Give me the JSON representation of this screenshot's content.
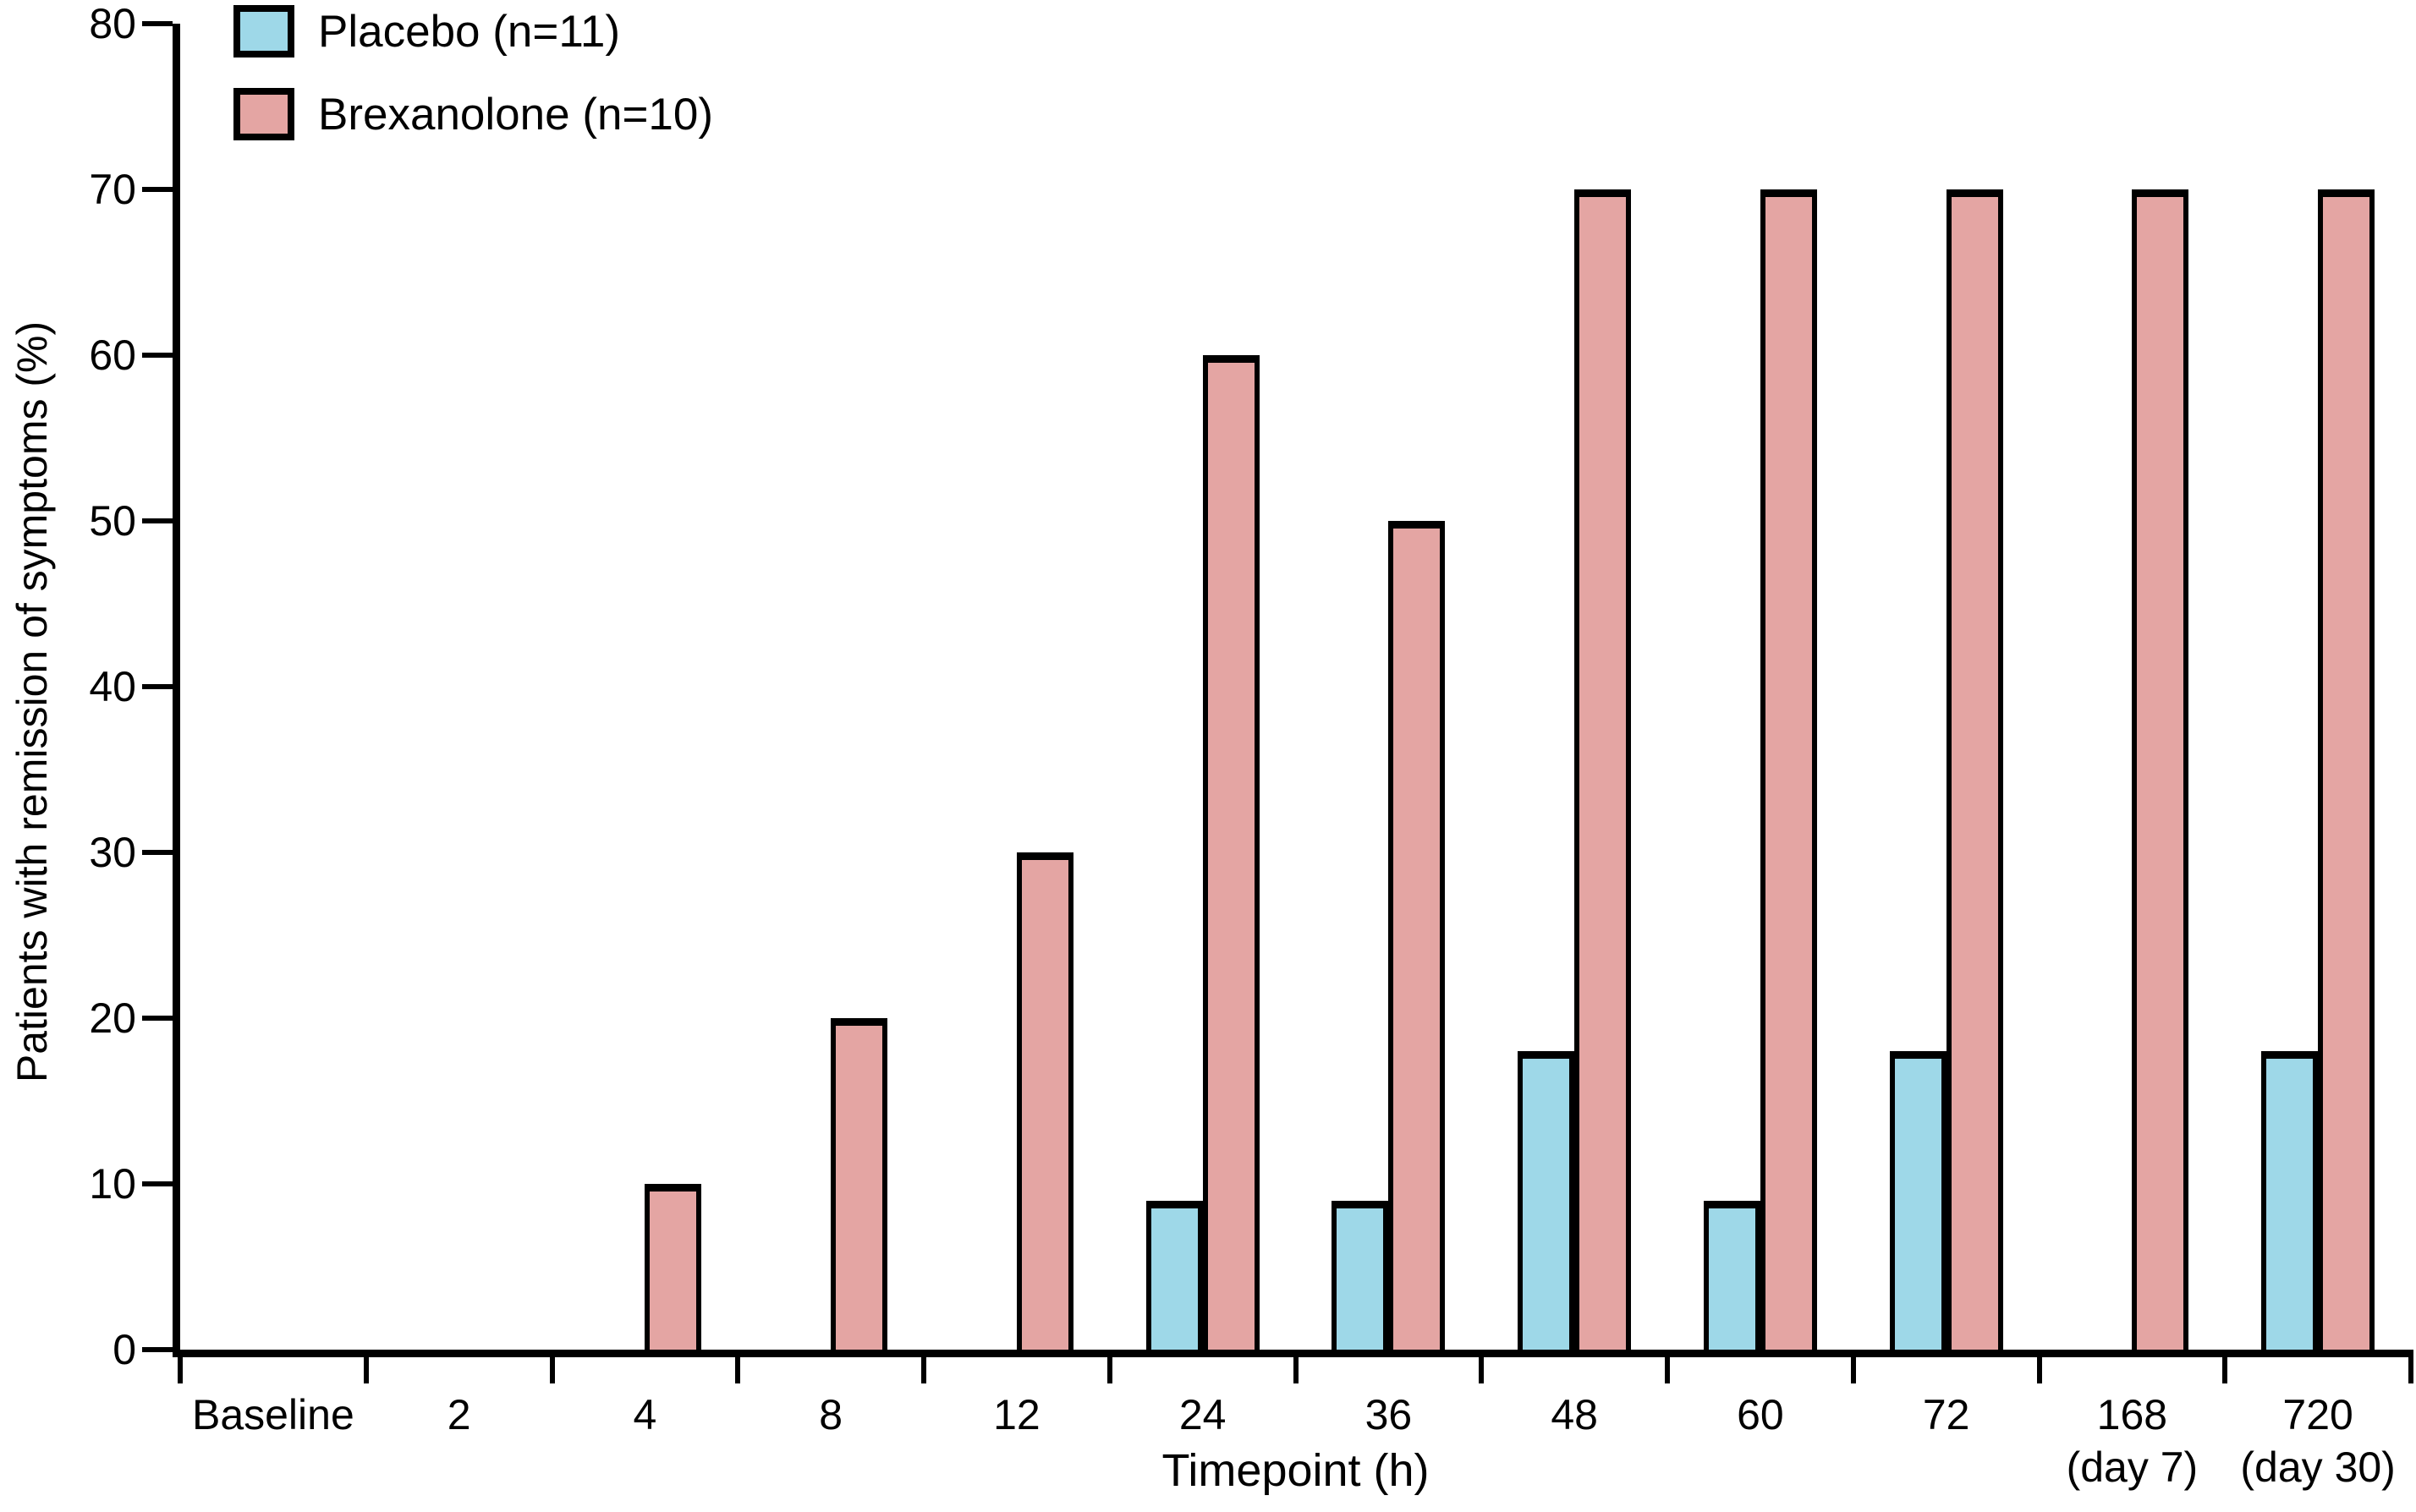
{
  "figure": {
    "background": "#FFFFFF",
    "axis_color": "#000000"
  },
  "chart_data": {
    "type": "bar",
    "title": "",
    "xlabel": "Timepoint (h)",
    "ylabel": "Patients with remission of symptoms (%)",
    "ylim": [
      0,
      80
    ],
    "yticks": [
      0,
      10,
      20,
      30,
      40,
      50,
      60,
      70,
      80
    ],
    "grid": false,
    "legend_position": "top-left",
    "bar_outline_color": "#000000",
    "categories": [
      {
        "label": "Baseline",
        "sublabel": ""
      },
      {
        "label": "2",
        "sublabel": ""
      },
      {
        "label": "4",
        "sublabel": ""
      },
      {
        "label": "8",
        "sublabel": ""
      },
      {
        "label": "12",
        "sublabel": ""
      },
      {
        "label": "24",
        "sublabel": ""
      },
      {
        "label": "36",
        "sublabel": ""
      },
      {
        "label": "48",
        "sublabel": ""
      },
      {
        "label": "60",
        "sublabel": ""
      },
      {
        "label": "72",
        "sublabel": ""
      },
      {
        "label": "168",
        "sublabel": "(day 7)"
      },
      {
        "label": "720",
        "sublabel": "(day 30)"
      }
    ],
    "series": [
      {
        "name": "Placebo (n=11)",
        "color": "#9ED8E8",
        "values": [
          0,
          0,
          0,
          0,
          0,
          9,
          9,
          18,
          9,
          18,
          0,
          18
        ]
      },
      {
        "name": "Brexanolone (n=10)",
        "color": "#E4A5A3",
        "values": [
          0,
          0,
          10,
          20,
          30,
          60,
          50,
          70,
          70,
          70,
          70,
          70
        ]
      }
    ]
  }
}
